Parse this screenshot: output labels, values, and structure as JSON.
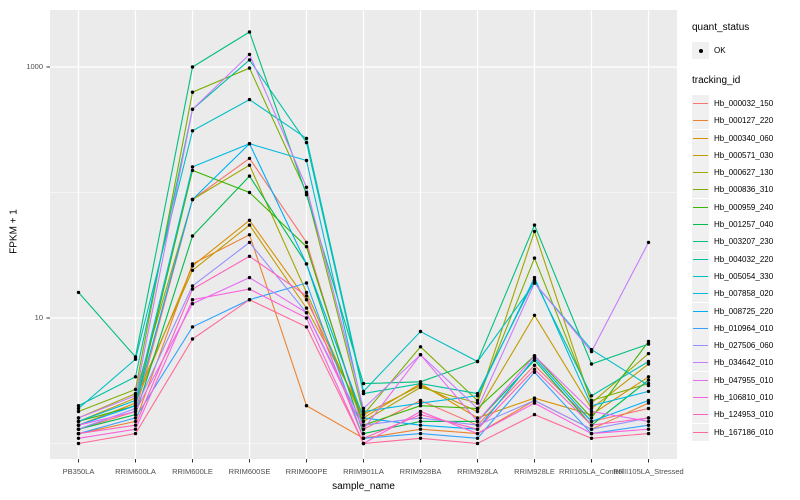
{
  "window": {
    "background": "#FFFFFF"
  },
  "theme": {
    "panel_bg": "#EBEBEB",
    "grid_major_color": "#FFFFFF",
    "grid_minor_color": "#FFFFFF",
    "tick_mark_color": "#333333",
    "tick_label_color": "#4D4D4D",
    "axis_title_color": "#000000",
    "point_color": "#000000",
    "legend_key_bg": "#F0F0F0"
  },
  "legend": {
    "position": "right",
    "quant_status": {
      "title": "quant_status",
      "items": [
        {
          "label": "OK",
          "marker": "black-point"
        }
      ]
    },
    "tracking_id": {
      "title": "tracking_id",
      "note": "entries generated from chart_data.series"
    }
  },
  "chart_data": {
    "type": "line",
    "title": "",
    "xlabel": "sample_name",
    "ylabel": "FPKM + 1",
    "y_scale": "log10",
    "ylim": [
      1,
      2800
    ],
    "y_ticks": [
      {
        "value": 1000,
        "label": "1000"
      },
      {
        "value": 10,
        "label": "10"
      }
    ],
    "y_minor_gridlines": [
      1,
      100
    ],
    "grid": true,
    "legend_position": "right",
    "point_marker": "filled-black-circle",
    "values_unit": "FPKM + 1 (values as plotted on log axis)",
    "categories": [
      "PB350LA",
      "RRIM600LA",
      "RRIM600LE",
      "RRIM600SE",
      "RRIM600PE",
      "RRIM901LA",
      "RRIM928BA",
      "RRIM928LA",
      "RRIM928LE",
      "RRII105LA_Control",
      "RRII105LA_Stressed"
    ],
    "series": [
      {
        "name": "Hb_000032_150",
        "color": "#F8766D",
        "values": [
          1.3,
          1.8,
          88,
          187,
          40,
          1.3,
          2.2,
          1.4,
          4.2,
          1.5,
          1.9
        ]
      },
      {
        "name": "Hb_000127_220",
        "color": "#EA8331",
        "values": [
          1.2,
          1.5,
          27,
          46,
          2.0,
          1.1,
          1.3,
          1.2,
          2.2,
          1.3,
          2.1
        ]
      },
      {
        "name": "Hb_000340_060",
        "color": "#D89000",
        "values": [
          1.4,
          2.1,
          26,
          60,
          14,
          1.6,
          3.0,
          1.6,
          2.3,
          1.7,
          3.4
        ]
      },
      {
        "name": "Hb_000571_030",
        "color": "#C09B00",
        "values": [
          1.5,
          2.3,
          24,
          55,
          12,
          1.7,
          2.9,
          1.8,
          10.5,
          1.9,
          4.3
        ]
      },
      {
        "name": "Hb_000627_130",
        "color": "#A3A500",
        "values": [
          1.6,
          2.5,
          88,
          165,
          16,
          1.5,
          2.8,
          2.1,
          49,
          2.1,
          5.2
        ]
      },
      {
        "name": "Hb_000836_310",
        "color": "#7CAE00",
        "values": [
          1.8,
          2.7,
          630,
          980,
          100,
          1.7,
          5.9,
          2.2,
          30,
          2.2,
          3.0
        ]
      },
      {
        "name": "Hb_000959_240",
        "color": "#39B600",
        "values": [
          1.5,
          2.0,
          150,
          100,
          37,
          1.4,
          2.0,
          1.9,
          5.0,
          1.6,
          6.5
        ]
      },
      {
        "name": "Hb_001257_040",
        "color": "#00BB4E",
        "values": [
          1.3,
          1.7,
          45,
          135,
          27,
          1.2,
          1.5,
          1.5,
          4.6,
          1.4,
          3.2
        ]
      },
      {
        "name": "Hb_003207_230",
        "color": "#00BF7D",
        "values": [
          16,
          4.9,
          1000,
          1900,
          96,
          3.0,
          3.1,
          4.5,
          55,
          4.3,
          6.2
        ]
      },
      {
        "name": "Hb_004032_220",
        "color": "#00C1A3",
        "values": [
          2.0,
          3.4,
          460,
          1140,
          250,
          2.5,
          3.0,
          2.5,
          20,
          2.4,
          4.5
        ]
      },
      {
        "name": "Hb_005054_330",
        "color": "#00BFC4",
        "values": [
          1.9,
          4.7,
          310,
          550,
          270,
          2.6,
          7.8,
          4.5,
          19,
          5.6,
          2.9
        ]
      },
      {
        "name": "Hb_007858_020",
        "color": "#00BAE0",
        "values": [
          1.5,
          2.2,
          160,
          245,
          180,
          1.8,
          2.1,
          2.4,
          21,
          2.0,
          2.6
        ]
      },
      {
        "name": "Hb_008725_220",
        "color": "#00B0F6",
        "values": [
          1.4,
          2.0,
          88,
          245,
          27,
          1.6,
          1.4,
          1.3,
          4.8,
          1.5,
          2.2
        ]
      },
      {
        "name": "Hb_010964_010",
        "color": "#35A2FF",
        "values": [
          1.2,
          1.6,
          8.5,
          14,
          19,
          1.1,
          1.2,
          1.1,
          3.7,
          1.2,
          1.4
        ]
      },
      {
        "name": "Hb_027506_060",
        "color": "#9590FF",
        "values": [
          1.3,
          1.9,
          18,
          40,
          11,
          1.4,
          1.6,
          1.4,
          2.2,
          1.3,
          1.6
        ]
      },
      {
        "name": "Hb_034642_010",
        "color": "#C77CFF",
        "values": [
          1.6,
          2.4,
          460,
          1260,
          110,
          1.9,
          5.1,
          1.9,
          19,
          5.4,
          40
        ]
      },
      {
        "name": "Hb_047955_010",
        "color": "#E76BF3",
        "values": [
          1.4,
          1.8,
          13,
          21,
          11,
          1.3,
          5.1,
          1.5,
          5.0,
          1.8,
          1.5
        ]
      },
      {
        "name": "Hb_106810_010",
        "color": "#FA62DB",
        "values": [
          1.1,
          1.3,
          14,
          17,
          10,
          1.0,
          1.8,
          1.2,
          2.1,
          1.2,
          1.3
        ]
      },
      {
        "name": "Hb_124953_010",
        "color": "#FF62BC",
        "values": [
          1.2,
          1.4,
          17,
          31,
          15,
          1.1,
          1.7,
          1.3,
          3.9,
          1.4,
          1.6
        ]
      },
      {
        "name": "Hb_167186_010",
        "color": "#FF6A98",
        "values": [
          1.0,
          1.2,
          6.8,
          14,
          8.5,
          1.0,
          1.1,
          1.0,
          1.7,
          1.1,
          1.2
        ]
      }
    ]
  }
}
